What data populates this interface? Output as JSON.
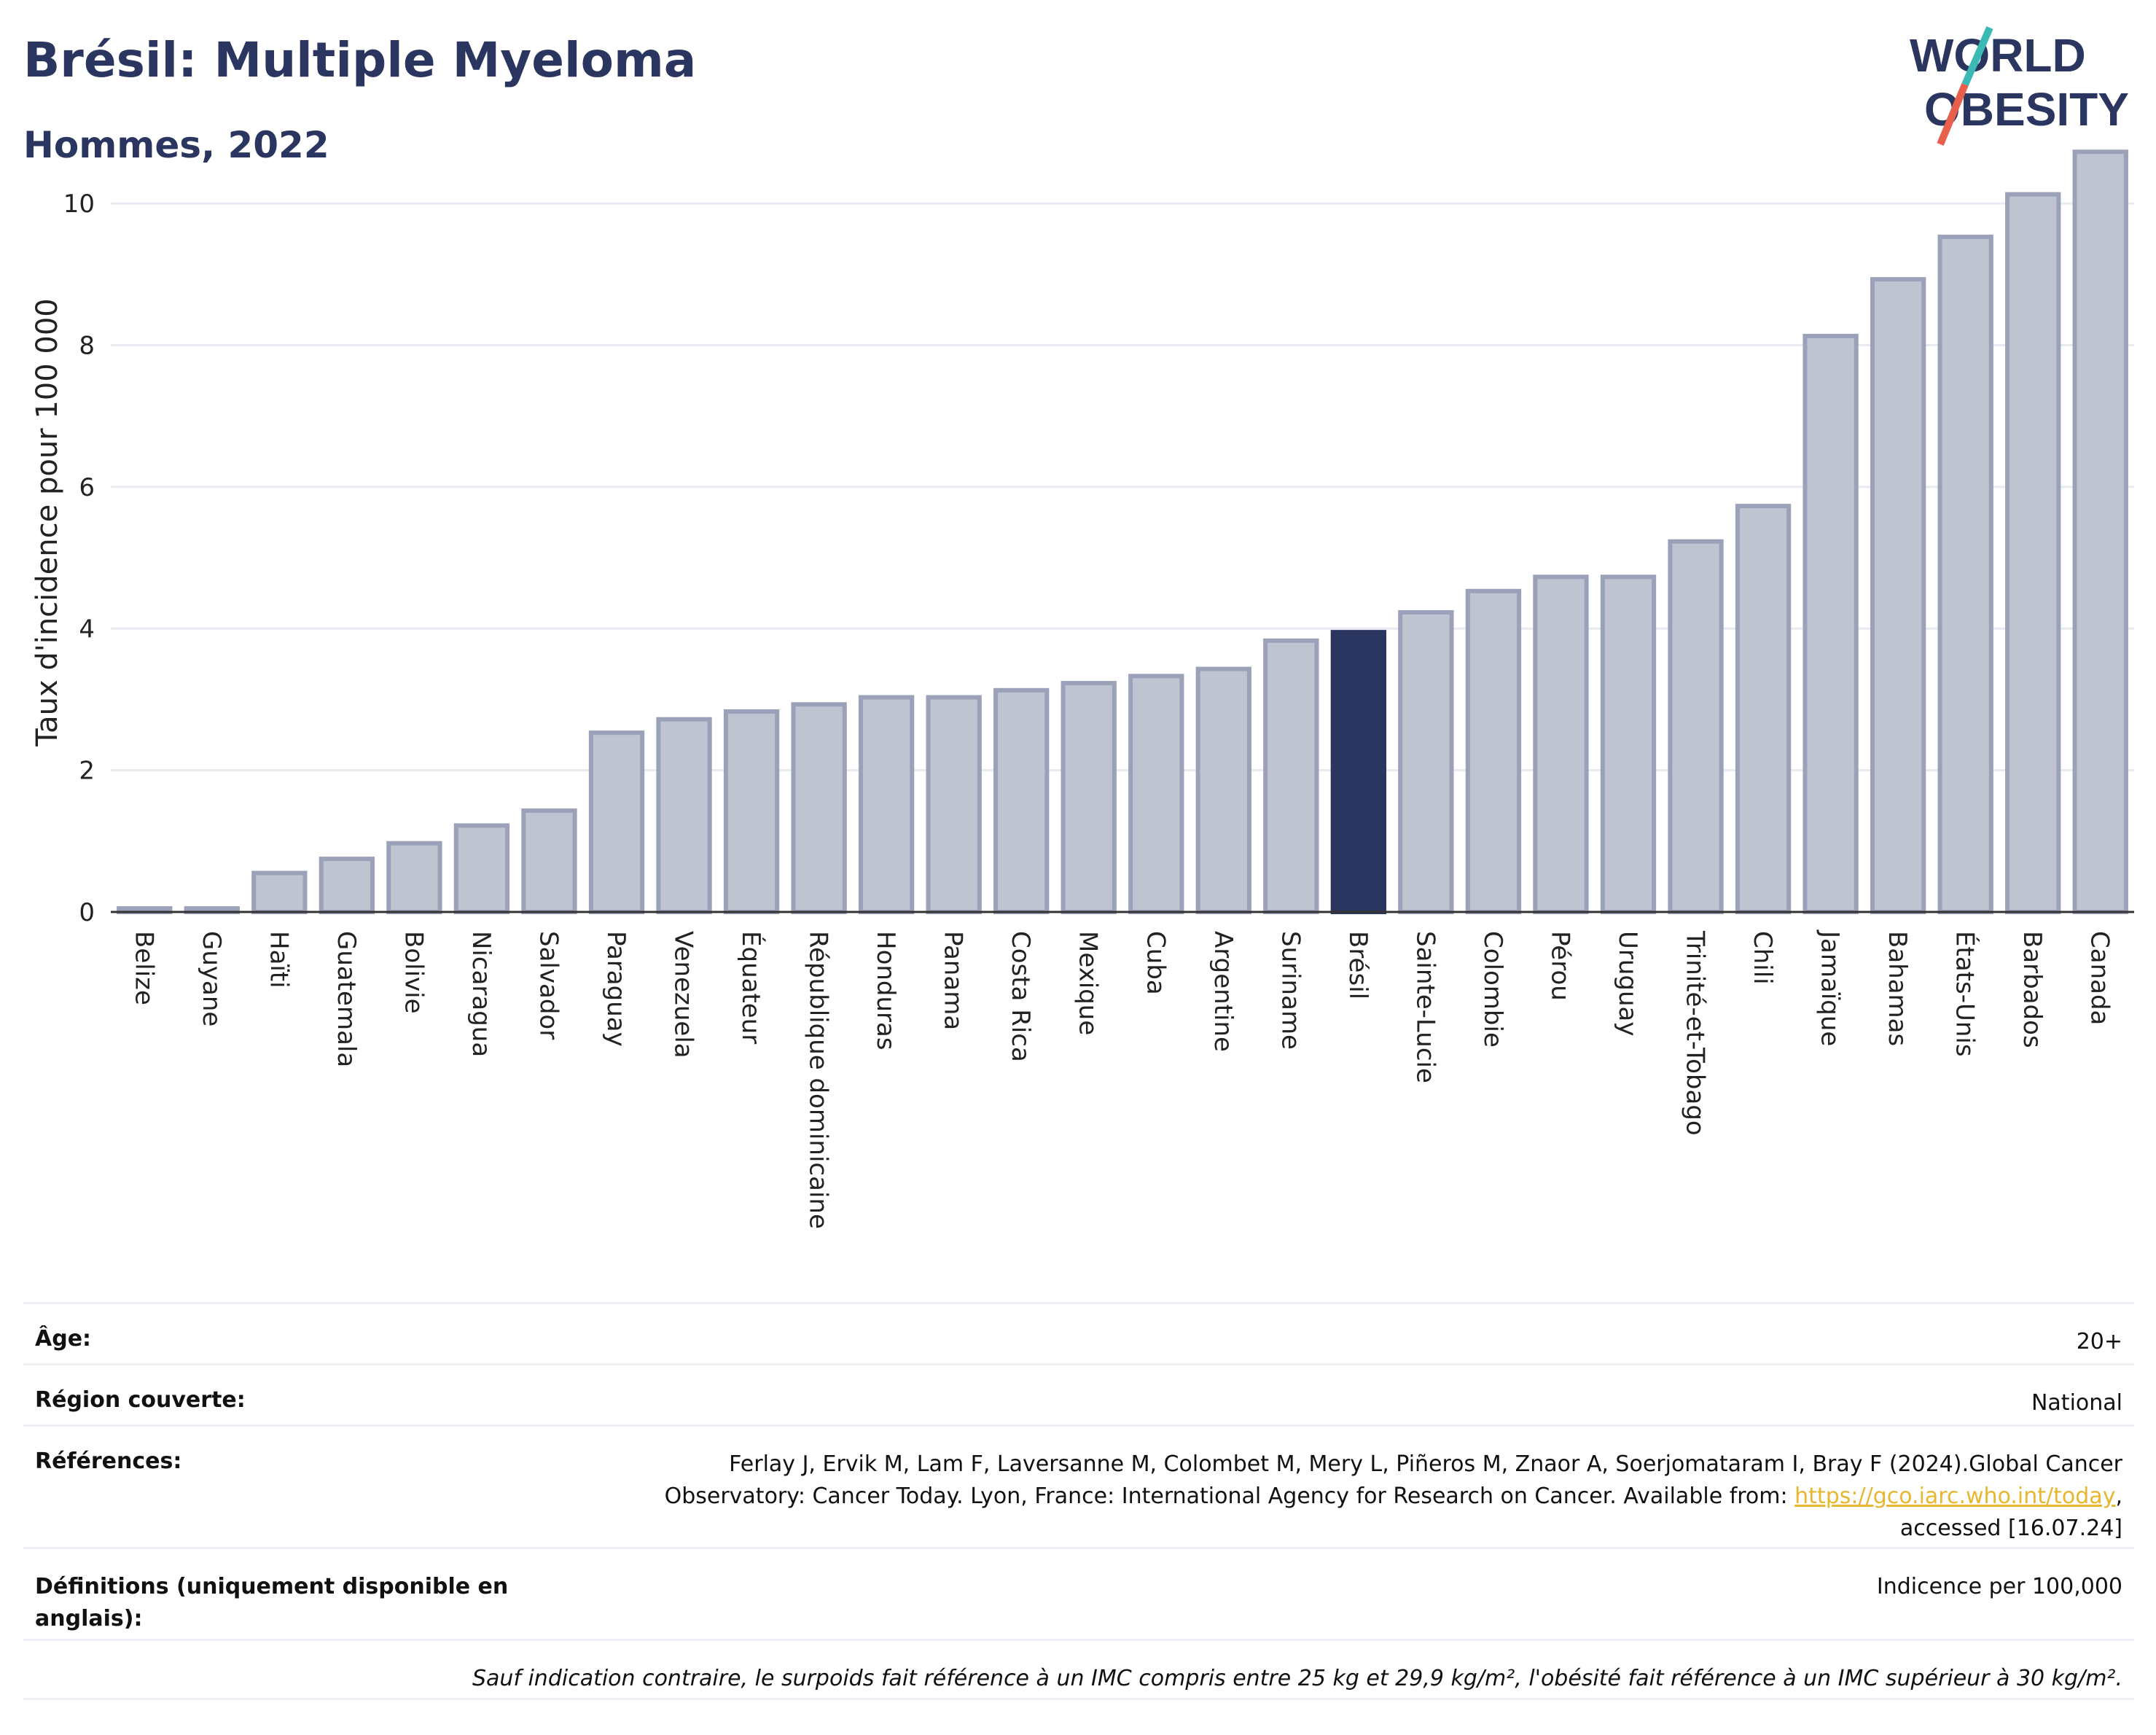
{
  "header": {
    "title": "Brésil: Multiple Myeloma",
    "subtitle": "Hommes, 2022"
  },
  "logo": {
    "line1": "WORLD",
    "line2": "OBESITY",
    "slash_colors": [
      "#3bb9b4",
      "#e8604c"
    ]
  },
  "colors": {
    "bar": "#c0c4d1",
    "bar_stroke": "#9aa1b8",
    "highlight": "#2b3660",
    "text_dark": "#2b3660",
    "grid": "#e8eaf0",
    "link": "#e8b730"
  },
  "chart_data": {
    "type": "bar",
    "title": "Brésil: Multiple Myeloma",
    "subtitle": "Hommes, 2022",
    "ylabel": "Taux d'incidence pour 100 000",
    "xlabel": "",
    "ylim": [
      0,
      11
    ],
    "yticks": [
      0,
      2,
      4,
      6,
      8,
      10
    ],
    "grid": true,
    "highlight_category": "Brésil",
    "categories": [
      "Belize",
      "Guyane",
      "Haïti",
      "Guatemala",
      "Bolivie",
      "Nicaragua",
      "Salvador",
      "Paraguay",
      "Venezuela",
      "Équateur",
      "République dominicaine",
      "Honduras",
      "Panama",
      "Costa Rica",
      "Mexique",
      "Cuba",
      "Argentine",
      "Suriname",
      "Brésil",
      "Sainte-Lucie",
      "Colombie",
      "Pérou",
      "Uruguay",
      "Trinité-et-Tobago",
      "Chili",
      "Jamaïque",
      "Bahamas",
      "États-Unis",
      "Barbados",
      "Canada"
    ],
    "values": [
      0.05,
      0.05,
      0.55,
      0.75,
      0.97,
      1.22,
      1.43,
      2.53,
      2.72,
      2.83,
      2.93,
      3.03,
      3.03,
      3.13,
      3.23,
      3.33,
      3.43,
      3.83,
      3.95,
      4.23,
      4.53,
      4.73,
      4.73,
      5.23,
      5.73,
      8.13,
      8.93,
      9.53,
      10.13,
      10.73
    ]
  },
  "info": {
    "age_label": "Âge:",
    "age_value": "20+",
    "region_label": "Région couverte:",
    "region_value": "National",
    "references_label": "Références:",
    "references_text_1": "Ferlay J, Ervik M, Lam F, Laversanne M, Colombet M, Mery L, Piñeros M, Znaor A, Soerjomataram I, Bray F (2024).Global Cancer",
    "references_text_2": "Observatory: Cancer Today. Lyon, France: International Agency for Research on Cancer. Available from: ",
    "references_link": "https://gco.iarc.who.int/today",
    "references_text_3": ",",
    "references_text_4": "accessed [16.07.24]",
    "definitions_label": "Définitions (uniquement disponible en anglais):",
    "definitions_value": "Indicence per 100,000",
    "note": "Sauf indication contraire, le surpoids fait référence à un IMC compris entre 25 kg et 29,9 kg/m², l'obésité fait référence à un IMC supérieur à 30 kg/m²."
  }
}
